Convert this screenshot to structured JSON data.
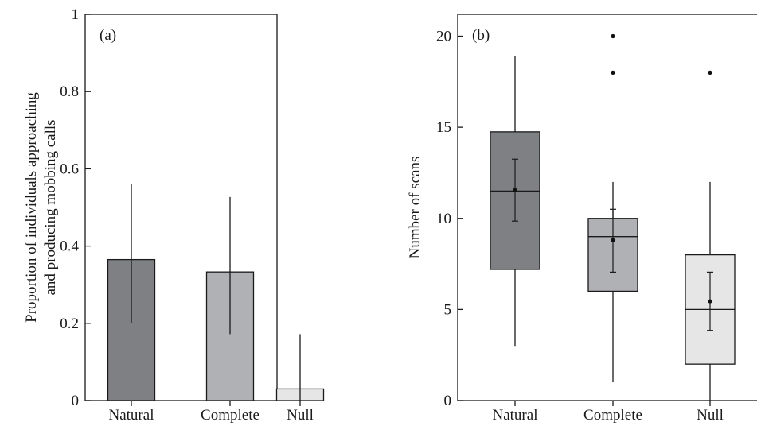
{
  "colors": {
    "Natural": "#7f8084",
    "Complete": "#b0b1b4",
    "Null": "#e6e6e7",
    "axis": "#1a1a1a"
  },
  "chart_data": [
    {
      "type": "bar",
      "panel_label": "(a)",
      "categories": [
        "Natural",
        "Complete",
        "Null"
      ],
      "values": [
        0.365,
        0.333,
        0.03
      ],
      "error_low": [
        0.2,
        0.172,
        0.0
      ],
      "error_high": [
        0.56,
        0.527,
        0.172
      ],
      "title": "",
      "xlabel": "",
      "ylabel_lines": [
        "Proportion of individuals approaching",
        "and producing mobbing calls"
      ],
      "ylim": [
        0,
        1
      ],
      "yticks": [
        0,
        0.2,
        0.4,
        0.6,
        0.8,
        1
      ],
      "ytick_labels": [
        "0",
        "0.2",
        "0.4",
        "0.6",
        "0.8",
        "1"
      ],
      "grid": false,
      "legend": "none"
    },
    {
      "type": "box",
      "panel_label": "(b)",
      "categories": [
        "Natural",
        "Complete",
        "Null"
      ],
      "boxes": [
        {
          "name": "Natural",
          "whisker_low": 3,
          "q1": 7.2,
          "median": 11.5,
          "q3": 14.75,
          "whisker_high": 18.9,
          "mean": 11.55,
          "mean_err_low": 9.85,
          "mean_err_high": 13.25,
          "outliers": []
        },
        {
          "name": "Complete",
          "whisker_low": 1,
          "q1": 6,
          "median": 9,
          "q3": 10,
          "whisker_high": 12,
          "mean": 8.8,
          "mean_err_low": 7.05,
          "mean_err_high": 10.5,
          "outliers": [
            18,
            20
          ]
        },
        {
          "name": "Null",
          "whisker_low": 0,
          "q1": 2,
          "median": 5,
          "q3": 8,
          "whisker_high": 12,
          "mean": 5.45,
          "mean_err_low": 3.85,
          "mean_err_high": 7.05,
          "outliers": [
            18
          ]
        }
      ],
      "title": "",
      "xlabel": "",
      "ylabel": "Number of scans",
      "ylim": [
        0,
        21.2
      ],
      "yticks": [
        0,
        5,
        10,
        15,
        20
      ],
      "ytick_labels": [
        "0",
        "5",
        "10",
        "15",
        "20"
      ],
      "grid": false,
      "legend": "none"
    }
  ]
}
